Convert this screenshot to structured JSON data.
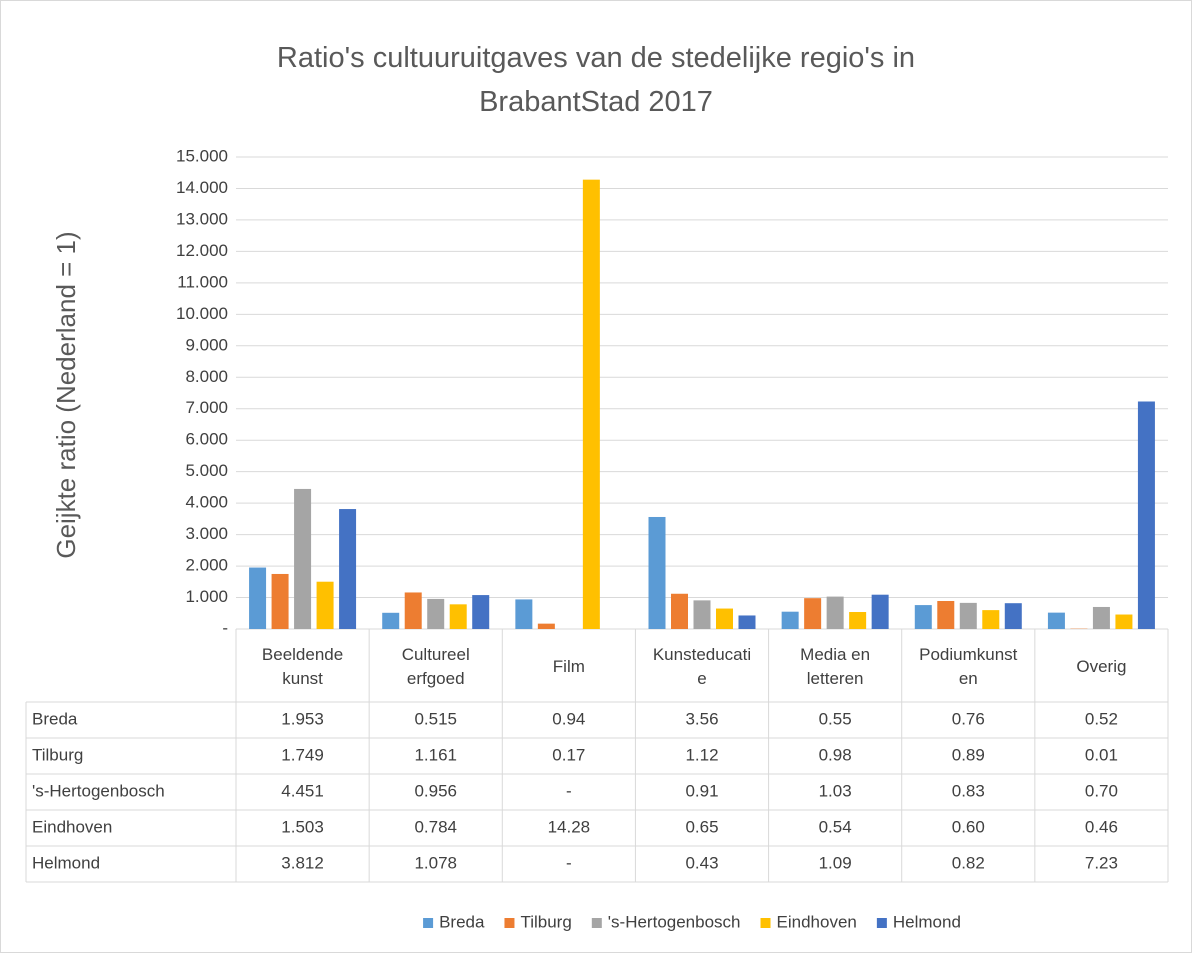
{
  "chart_data": {
    "type": "bar",
    "title": "Ratio's cultuuruitgaves van de stedelijke regio's in BrabantStad 2017",
    "y_label": "Geijkte ratio (Nederland = 1)",
    "categories": [
      "Beeldende kunst",
      "Cultureel erfgoed",
      "Film",
      "Kunsteducatie",
      "Media en letteren",
      "Podiumkunsten",
      "Overig"
    ],
    "series": [
      {
        "name": "Breda",
        "color": "#5b9bd5",
        "values": [
          1.953,
          0.515,
          0.94,
          3.56,
          0.55,
          0.76,
          0.52
        ],
        "value_labels": [
          "1.953",
          "0.515",
          "0.94",
          "3.56",
          "0.55",
          "0.76",
          "0.52"
        ]
      },
      {
        "name": "Tilburg",
        "color": "#ed7d31",
        "values": [
          1.749,
          1.161,
          0.17,
          1.12,
          0.98,
          0.89,
          0.01
        ],
        "value_labels": [
          "1.749",
          "1.161",
          "0.17",
          "1.12",
          "0.98",
          "0.89",
          "0.01"
        ]
      },
      {
        "name": "'s-Hertogenbosch",
        "color": "#a5a5a5",
        "values": [
          4.451,
          0.956,
          null,
          0.91,
          1.03,
          0.83,
          0.7
        ],
        "value_labels": [
          "4.451",
          "0.956",
          "-",
          "0.91",
          "1.03",
          "0.83",
          "0.70"
        ]
      },
      {
        "name": "Eindhoven",
        "color": "#ffc000",
        "values": [
          1.503,
          0.784,
          14.28,
          0.65,
          0.54,
          0.6,
          0.46
        ],
        "value_labels": [
          "1.503",
          "0.784",
          "14.28",
          "0.65",
          "0.54",
          "0.60",
          "0.46"
        ]
      },
      {
        "name": "Helmond",
        "color": "#4472c4",
        "values": [
          3.812,
          1.078,
          null,
          0.43,
          1.09,
          0.82,
          7.23
        ],
        "value_labels": [
          "3.812",
          "1.078",
          "-",
          "0.43",
          "1.09",
          "0.82",
          "7.23"
        ]
      }
    ],
    "ylim": [
      0,
      15
    ],
    "yticks": [
      {
        "value": 0,
        "label": "-"
      },
      {
        "value": 1,
        "label": "1.000"
      },
      {
        "value": 2,
        "label": "2.000"
      },
      {
        "value": 3,
        "label": "3.000"
      },
      {
        "value": 4,
        "label": "4.000"
      },
      {
        "value": 5,
        "label": "5.000"
      },
      {
        "value": 6,
        "label": "6.000"
      },
      {
        "value": 7,
        "label": "7.000"
      },
      {
        "value": 8,
        "label": "8.000"
      },
      {
        "value": 9,
        "label": "9.000"
      },
      {
        "value": 10,
        "label": "10.000"
      },
      {
        "value": 11,
        "label": "11.000"
      },
      {
        "value": 12,
        "label": "12.000"
      },
      {
        "value": 13,
        "label": "13.000"
      },
      {
        "value": 14,
        "label": "14.000"
      },
      {
        "value": 15,
        "label": "15.000"
      }
    ],
    "grid": true,
    "legend": "bottom"
  }
}
